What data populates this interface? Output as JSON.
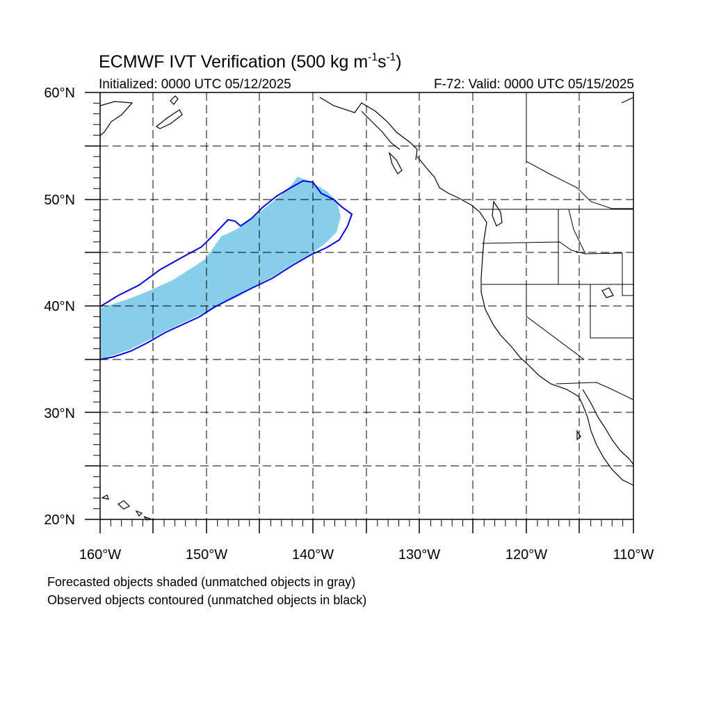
{
  "title": {
    "main": "ECMWF IVT Verification (500 kg m",
    "sup1": "-1",
    "mid": "s",
    "sup2": "-1",
    "end": ")"
  },
  "subtitle_left": "Initialized: 0000 UTC 05/12/2025",
  "subtitle_right": "F-72: Valid: 0000 UTC 05/15/2025",
  "lat_labels": [
    "60°N",
    "50°N",
    "40°N",
    "30°N",
    "20°N"
  ],
  "lon_labels": [
    "160°W",
    "150°W",
    "140°W",
    "130°W",
    "120°W",
    "110°W"
  ],
  "notes": [
    "Forecasted objects shaded (unmatched objects in gray)",
    "Observed objects contoured (unmatched objects in black)"
  ],
  "colors": {
    "forecast_fill": "#87ceeb",
    "observed_contour": "#0000dd",
    "coastline": "#000000",
    "grid": "#000000"
  },
  "map": {
    "lon_range": [
      -160,
      -110
    ],
    "lat_range": [
      20,
      60
    ],
    "projection": "cylindrical-equidistant",
    "grid": "dashed every 5 degrees"
  }
}
